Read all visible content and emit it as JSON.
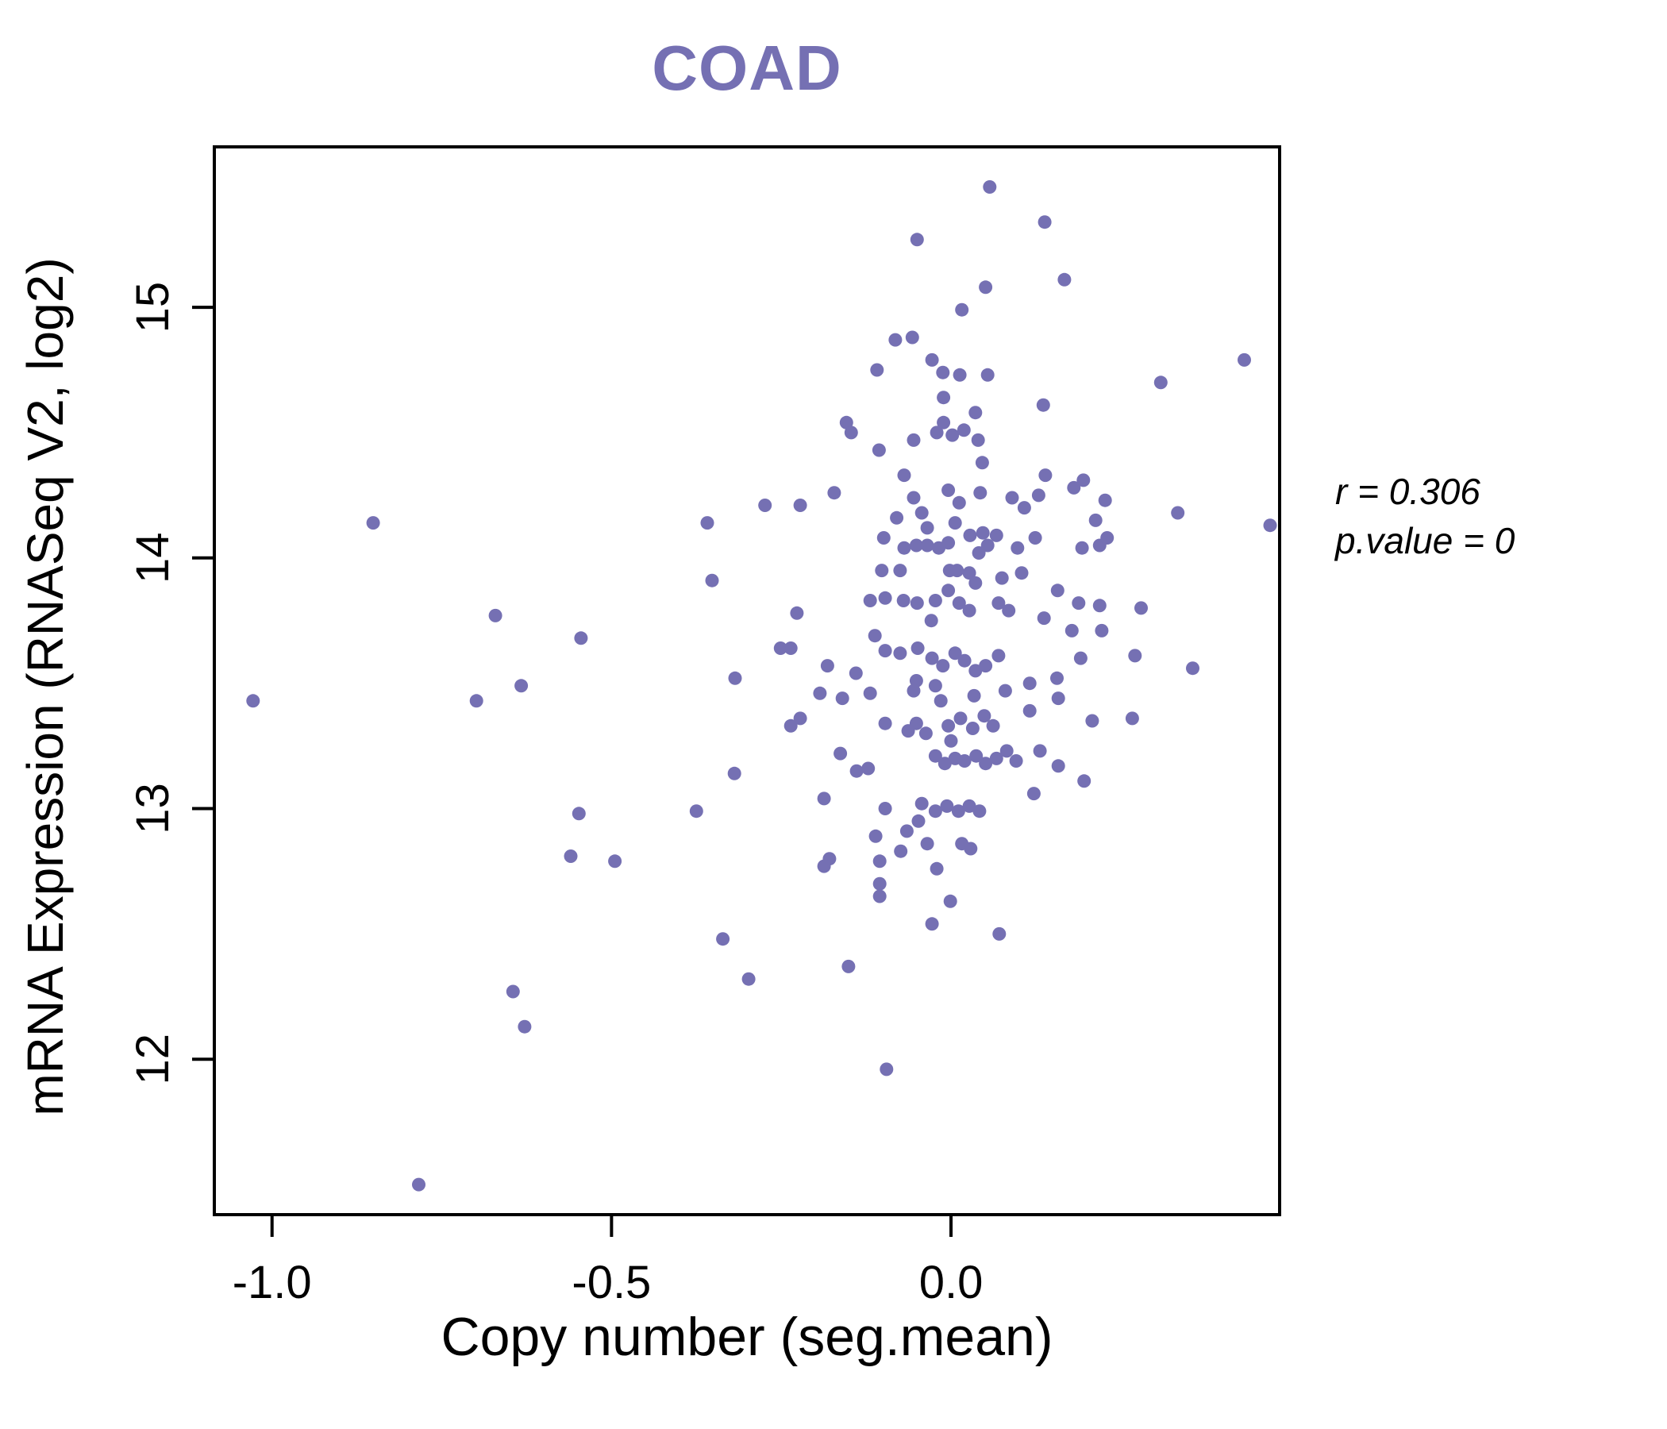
{
  "title": "COAD",
  "annotation": {
    "r_var": "r",
    "r_rest": " = 0.306",
    "p_var": "p.value",
    "p_rest": " = 0"
  },
  "colors": {
    "accent": "#7570b3",
    "points": "#7570b3",
    "axis": "#000000",
    "background": "#ffffff"
  },
  "chart_data": {
    "type": "scatter",
    "title": "COAD",
    "xlabel": "Copy number (seg.mean)",
    "ylabel": "mRNA Expression (RNASeq V2, log2)",
    "xlim": [
      -1.085,
      0.484
    ],
    "ylim": [
      11.38,
      15.64
    ],
    "x_ticks": [
      -1.0,
      -0.5,
      0.0
    ],
    "x_tick_labels": [
      "-1.0",
      "-0.5",
      "0.0"
    ],
    "y_ticks": [
      12,
      13,
      14,
      15
    ],
    "y_tick_labels": [
      "12",
      "13",
      "14",
      "15"
    ],
    "grid": false,
    "legend": null,
    "stats": {
      "r": 0.306,
      "p_value": 0
    },
    "point_color": "#7570b3",
    "points": [
      [
        -0.851,
        14.14
      ],
      [
        -0.359,
        14.14
      ],
      [
        -0.352,
        13.91
      ],
      [
        -0.671,
        13.77
      ],
      [
        -0.545,
        13.68
      ],
      [
        -0.318,
        13.52
      ],
      [
        -0.633,
        13.49
      ],
      [
        -1.028,
        13.43
      ],
      [
        -0.699,
        13.43
      ],
      [
        -0.319,
        13.14
      ],
      [
        -0.548,
        12.98
      ],
      [
        -0.375,
        12.99
      ],
      [
        -0.56,
        12.81
      ],
      [
        -0.495,
        12.79
      ],
      [
        -0.336,
        12.48
      ],
      [
        -0.298,
        12.32
      ],
      [
        -0.645,
        12.27
      ],
      [
        -0.628,
        12.13
      ],
      [
        -0.784,
        11.5
      ],
      [
        0.057,
        15.48
      ],
      [
        0.138,
        15.34
      ],
      [
        -0.05,
        15.27
      ],
      [
        0.051,
        15.08
      ],
      [
        0.167,
        15.11
      ],
      [
        0.016,
        14.99
      ],
      [
        -0.057,
        14.88
      ],
      [
        -0.082,
        14.87
      ],
      [
        -0.028,
        14.79
      ],
      [
        -0.012,
        14.74
      ],
      [
        0.013,
        14.73
      ],
      [
        0.054,
        14.73
      ],
      [
        -0.109,
        14.75
      ],
      [
        -0.011,
        14.64
      ],
      [
        0.036,
        14.58
      ],
      [
        0.136,
        14.61
      ],
      [
        0.309,
        14.7
      ],
      [
        0.432,
        14.79
      ],
      [
        -0.154,
        14.54
      ],
      [
        -0.147,
        14.5
      ],
      [
        -0.011,
        14.54
      ],
      [
        -0.021,
        14.5
      ],
      [
        0.002,
        14.49
      ],
      [
        0.019,
        14.51
      ],
      [
        0.04,
        14.47
      ],
      [
        -0.055,
        14.47
      ],
      [
        -0.069,
        14.33
      ],
      [
        0.139,
        14.33
      ],
      [
        -0.172,
        14.26
      ],
      [
        -0.055,
        14.24
      ],
      [
        -0.004,
        14.27
      ],
      [
        0.012,
        14.22
      ],
      [
        0.227,
        14.23
      ],
      [
        0.334,
        14.18
      ],
      [
        -0.099,
        14.08
      ],
      [
        -0.069,
        14.04
      ],
      [
        -0.051,
        14.05
      ],
      [
        -0.035,
        14.05
      ],
      [
        -0.018,
        14.04
      ],
      [
        -0.004,
        14.06
      ],
      [
        0.028,
        14.09
      ],
      [
        0.047,
        14.1
      ],
      [
        0.067,
        14.09
      ],
      [
        0.054,
        14.05
      ],
      [
        0.041,
        14.02
      ],
      [
        0.124,
        14.08
      ],
      [
        0.098,
        14.04
      ],
      [
        0.193,
        14.04
      ],
      [
        0.219,
        14.05
      ],
      [
        0.23,
        14.08
      ],
      [
        -0.075,
        13.95
      ],
      [
        -0.002,
        13.95
      ],
      [
        0.027,
        13.94
      ],
      [
        -0.097,
        13.84
      ],
      [
        -0.07,
        13.83
      ],
      [
        -0.05,
        13.82
      ],
      [
        -0.004,
        13.87
      ],
      [
        0.012,
        13.82
      ],
      [
        0.027,
        13.79
      ],
      [
        -0.029,
        13.75
      ],
      [
        0.085,
        13.79
      ],
      [
        0.219,
        13.81
      ],
      [
        0.137,
        13.76
      ],
      [
        0.178,
        13.71
      ],
      [
        0.47,
        14.13
      ],
      [
        0.191,
        13.6
      ],
      [
        0.271,
        13.61
      ],
      [
        -0.112,
        13.69
      ],
      [
        -0.097,
        13.63
      ],
      [
        -0.075,
        13.62
      ],
      [
        -0.049,
        13.64
      ],
      [
        -0.028,
        13.6
      ],
      [
        -0.012,
        13.57
      ],
      [
        0.006,
        13.62
      ],
      [
        0.02,
        13.59
      ],
      [
        0.036,
        13.55
      ],
      [
        0.051,
        13.57
      ],
      [
        0.07,
        13.61
      ],
      [
        -0.227,
        13.78
      ],
      [
        -0.251,
        13.64
      ],
      [
        -0.236,
        13.64
      ],
      [
        -0.182,
        13.57
      ],
      [
        -0.14,
        13.54
      ],
      [
        0.156,
        13.52
      ],
      [
        0.116,
        13.5
      ],
      [
        -0.023,
        13.49
      ],
      [
        -0.051,
        13.51
      ],
      [
        -0.274,
        14.21
      ],
      [
        -0.222,
        14.21
      ],
      [
        0.356,
        13.56
      ],
      [
        -0.106,
        14.43
      ],
      [
        0.046,
        14.38
      ],
      [
        0.043,
        14.26
      ],
      [
        0.129,
        14.25
      ],
      [
        0.09,
        14.24
      ],
      [
        0.108,
        14.2
      ],
      [
        0.181,
        14.28
      ],
      [
        0.195,
        14.31
      ],
      [
        0.213,
        14.15
      ],
      [
        -0.08,
        14.16
      ],
      [
        -0.043,
        14.18
      ],
      [
        -0.035,
        14.12
      ],
      [
        0.006,
        14.14
      ],
      [
        -0.102,
        13.95
      ],
      [
        0.009,
        13.95
      ],
      [
        0.036,
        13.9
      ],
      [
        0.075,
        13.92
      ],
      [
        0.104,
        13.94
      ],
      [
        -0.119,
        13.83
      ],
      [
        -0.023,
        13.83
      ],
      [
        0.07,
        13.82
      ],
      [
        0.157,
        13.87
      ],
      [
        0.188,
        13.82
      ],
      [
        0.222,
        13.71
      ],
      [
        0.28,
        13.8
      ],
      [
        -0.193,
        13.46
      ],
      [
        -0.16,
        13.44
      ],
      [
        -0.119,
        13.46
      ],
      [
        -0.055,
        13.47
      ],
      [
        0.08,
        13.47
      ],
      [
        0.158,
        13.44
      ],
      [
        0.034,
        13.45
      ],
      [
        0.116,
        13.39
      ],
      [
        -0.015,
        13.43
      ],
      [
        -0.236,
        13.33
      ],
      [
        -0.222,
        13.36
      ],
      [
        -0.097,
        13.34
      ],
      [
        -0.063,
        13.31
      ],
      [
        -0.051,
        13.34
      ],
      [
        -0.037,
        13.3
      ],
      [
        -0.004,
        13.33
      ],
      [
        0.014,
        13.36
      ],
      [
        0.032,
        13.32
      ],
      [
        0.049,
        13.37
      ],
      [
        0.062,
        13.33
      ],
      [
        0.0,
        13.27
      ],
      [
        0.208,
        13.35
      ],
      [
        0.267,
        13.36
      ],
      [
        -0.163,
        13.22
      ],
      [
        -0.139,
        13.15
      ],
      [
        -0.122,
        13.16
      ],
      [
        -0.023,
        13.21
      ],
      [
        -0.009,
        13.18
      ],
      [
        0.006,
        13.2
      ],
      [
        0.02,
        13.19
      ],
      [
        0.037,
        13.21
      ],
      [
        0.051,
        13.18
      ],
      [
        0.067,
        13.2
      ],
      [
        0.082,
        13.23
      ],
      [
        0.096,
        13.19
      ],
      [
        0.131,
        13.23
      ],
      [
        0.158,
        13.17
      ],
      [
        -0.187,
        13.04
      ],
      [
        -0.097,
        13.0
      ],
      [
        -0.043,
        13.02
      ],
      [
        -0.023,
        12.99
      ],
      [
        -0.006,
        13.01
      ],
      [
        0.011,
        12.99
      ],
      [
        0.027,
        13.01
      ],
      [
        0.042,
        12.99
      ],
      [
        -0.065,
        12.91
      ],
      [
        -0.048,
        12.95
      ],
      [
        -0.111,
        12.89
      ],
      [
        -0.179,
        12.8
      ],
      [
        -0.105,
        12.79
      ],
      [
        -0.074,
        12.83
      ],
      [
        -0.035,
        12.86
      ],
      [
        0.016,
        12.86
      ],
      [
        0.029,
        12.84
      ],
      [
        -0.187,
        12.77
      ],
      [
        -0.105,
        12.7
      ],
      [
        -0.105,
        12.65
      ],
      [
        -0.021,
        12.76
      ],
      [
        -0.001,
        12.63
      ],
      [
        -0.028,
        12.54
      ],
      [
        0.071,
        12.5
      ],
      [
        -0.151,
        12.37
      ],
      [
        -0.095,
        11.96
      ],
      [
        0.196,
        13.11
      ],
      [
        0.122,
        13.06
      ]
    ]
  }
}
